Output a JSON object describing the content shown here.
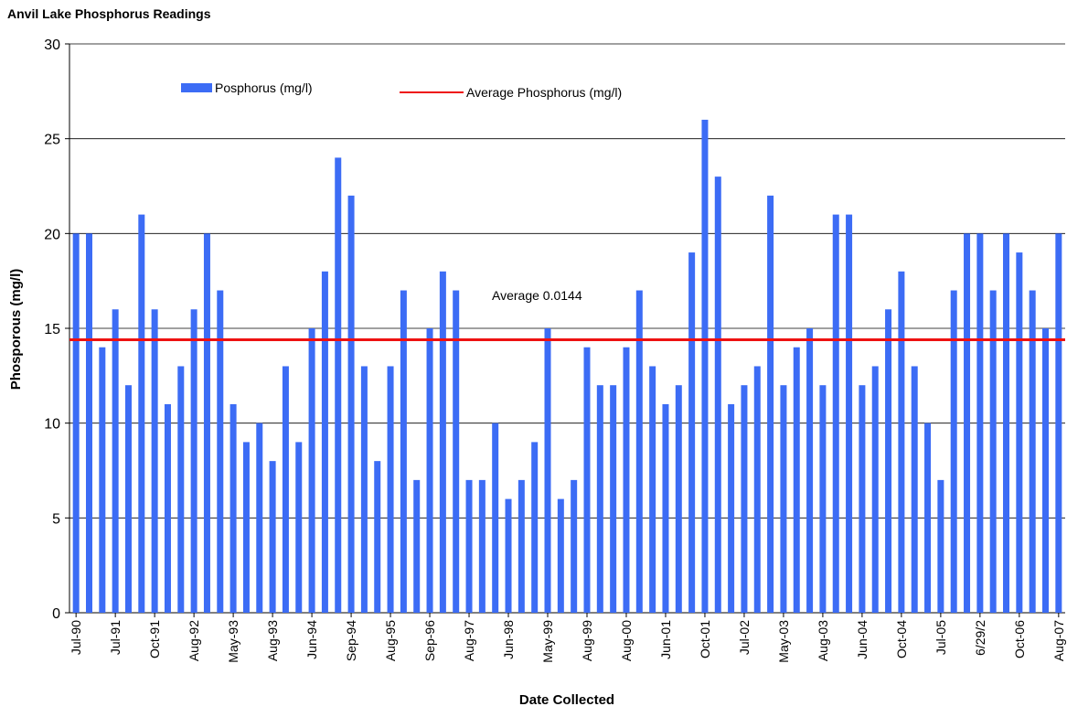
{
  "chart_data": {
    "type": "bar",
    "title": "Anvil Lake Phosphorus Readings",
    "x_label": "Date Collected",
    "y_label": "Phosporous (mg/l)",
    "categories": [
      "Jul-90",
      null,
      null,
      "Jul-91",
      null,
      null,
      "Oct-91",
      null,
      null,
      "Aug-92",
      null,
      null,
      "May-93",
      null,
      null,
      "Aug-93",
      null,
      null,
      "Jun-94",
      null,
      null,
      "Sep-94",
      null,
      null,
      "Aug-95",
      null,
      null,
      "Sep-96",
      null,
      null,
      "Aug-97",
      null,
      null,
      "Jun-98",
      null,
      null,
      "May-99",
      null,
      null,
      "Aug-99",
      null,
      null,
      "Aug-00",
      null,
      null,
      "Jun-01",
      null,
      null,
      "Oct-01",
      null,
      null,
      "Jul-02",
      null,
      null,
      "May-03",
      null,
      null,
      "Aug-03",
      null,
      null,
      "Jun-04",
      null,
      null,
      "Oct-04",
      null,
      null,
      "Jul-05",
      null,
      null,
      "6/29/2",
      null,
      null,
      "Oct-06",
      null,
      null,
      "Aug-07"
    ],
    "series": [
      {
        "name": "Posphorus (mg/l)",
        "color": "#3c6cf5",
        "values": [
          20,
          20,
          14,
          16,
          12,
          21,
          16,
          11,
          13,
          16,
          20,
          17,
          11,
          9,
          10,
          8,
          13,
          9,
          15,
          18,
          24,
          22,
          13,
          8,
          13,
          17,
          7,
          15,
          18,
          17,
          7,
          7,
          10,
          6,
          7,
          9,
          15,
          6,
          7,
          14,
          12,
          12,
          14,
          17,
          13,
          11,
          12,
          19,
          26,
          23,
          11,
          12,
          13,
          22,
          12,
          14,
          15,
          12,
          21,
          21,
          12,
          13,
          16,
          18,
          13,
          10,
          7,
          17,
          20,
          20,
          17,
          20,
          19,
          17,
          15,
          20
        ]
      }
    ],
    "average": {
      "name": "Average Phosphorus (mg/l)",
      "value": 14.4,
      "color": "#ee1111",
      "label": "Average 0.0144"
    },
    "ylim": [
      0,
      30
    ],
    "yticks": [
      0,
      5,
      10,
      15,
      20,
      25,
      30
    ],
    "grid": true
  }
}
